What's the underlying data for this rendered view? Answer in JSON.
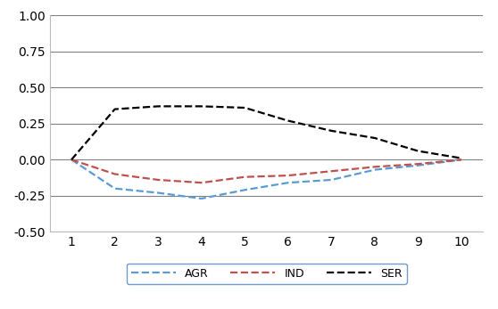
{
  "chart_data": {
    "type": "line",
    "categories": [
      "1",
      "2",
      "3",
      "4",
      "5",
      "6",
      "7",
      "8",
      "9",
      "10"
    ],
    "series": [
      {
        "name": "AGR",
        "color": "#5b9bd5",
        "line_style": "dashed",
        "values": [
          0.0,
          -0.2,
          -0.23,
          -0.27,
          -0.21,
          -0.16,
          -0.14,
          -0.07,
          -0.04,
          0.0
        ]
      },
      {
        "name": "IND",
        "color": "#c0504d",
        "line_style": "dashed",
        "values": [
          0.0,
          -0.1,
          -0.14,
          -0.16,
          -0.12,
          -0.11,
          -0.08,
          -0.05,
          -0.03,
          0.0
        ]
      },
      {
        "name": "SER",
        "color": "#000000",
        "line_style": "dashed",
        "values": [
          0.0,
          0.35,
          0.37,
          0.37,
          0.36,
          0.27,
          0.2,
          0.15,
          0.06,
          0.01
        ]
      }
    ],
    "ylim": [
      -0.5,
      1.0
    ],
    "yticks": [
      {
        "value": -0.5,
        "label": "-0.50"
      },
      {
        "value": -0.25,
        "label": "-0.25"
      },
      {
        "value": 0.0,
        "label": "0.00"
      },
      {
        "value": 0.25,
        "label": "0.25"
      },
      {
        "value": 0.5,
        "label": "0.50"
      },
      {
        "value": 0.75,
        "label": "0.75"
      },
      {
        "value": 1.0,
        "label": "1.00"
      }
    ],
    "grid": true,
    "legend": "bottom"
  }
}
